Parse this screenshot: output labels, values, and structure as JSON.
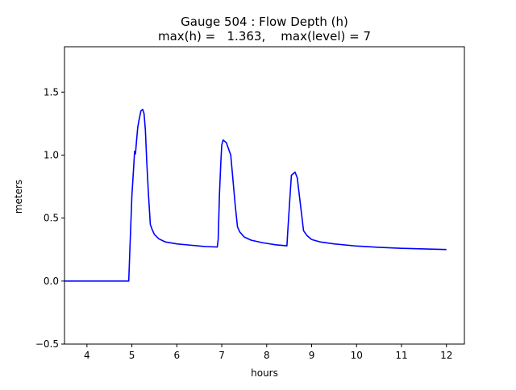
{
  "chart_data": {
    "type": "line",
    "title": "Gauge 504 : Flow Depth (h)",
    "subtitle": "max(h) =   1.363,    max(level) = 7",
    "xlabel": "hours",
    "ylabel": "meters",
    "xlim": [
      3.5,
      12.4
    ],
    "ylim": [
      -0.5,
      1.86
    ],
    "xticks": [
      4,
      5,
      6,
      7,
      8,
      9,
      10,
      11,
      12
    ],
    "yticks": [
      -0.5,
      0.0,
      0.5,
      1.0,
      1.5
    ],
    "xtick_labels": [
      "4",
      "5",
      "6",
      "7",
      "8",
      "9",
      "10",
      "11",
      "12"
    ],
    "ytick_labels": [
      "−0.5",
      "0.0",
      "0.5",
      "1.0",
      "1.5"
    ],
    "grid": false,
    "series": [
      {
        "color": "#0000ff",
        "x": [
          3.5,
          4.9,
          4.93,
          4.96,
          5.0,
          5.03,
          5.06,
          5.08,
          5.1,
          5.13,
          5.16,
          5.2,
          5.24,
          5.27,
          5.3,
          5.33,
          5.37,
          5.41,
          5.45,
          5.5,
          5.6,
          5.75,
          6.0,
          6.3,
          6.6,
          6.9,
          6.92,
          6.95,
          6.98,
          7.0,
          7.03,
          7.06,
          7.1,
          7.15,
          7.2,
          7.25,
          7.3,
          7.35,
          7.4,
          7.5,
          7.65,
          7.9,
          8.2,
          8.45,
          8.47,
          8.52,
          8.55,
          8.6,
          8.63,
          8.68,
          8.72,
          8.77,
          8.82,
          8.9,
          9.0,
          9.2,
          9.5,
          10.0,
          10.5,
          11.0,
          11.5,
          12.0
        ],
        "y": [
          0.0,
          0.0,
          0.0,
          0.3,
          0.68,
          0.85,
          1.03,
          1.01,
          1.1,
          1.22,
          1.28,
          1.35,
          1.363,
          1.33,
          1.2,
          0.95,
          0.68,
          0.45,
          0.41,
          0.37,
          0.335,
          0.31,
          0.295,
          0.285,
          0.275,
          0.27,
          0.33,
          0.7,
          0.95,
          1.08,
          1.12,
          1.11,
          1.1,
          1.05,
          1.0,
          0.8,
          0.6,
          0.43,
          0.39,
          0.35,
          0.325,
          0.305,
          0.288,
          0.28,
          0.4,
          0.68,
          0.84,
          0.855,
          0.865,
          0.82,
          0.7,
          0.55,
          0.4,
          0.36,
          0.33,
          0.31,
          0.295,
          0.278,
          0.268,
          0.26,
          0.255,
          0.25
        ]
      }
    ]
  }
}
